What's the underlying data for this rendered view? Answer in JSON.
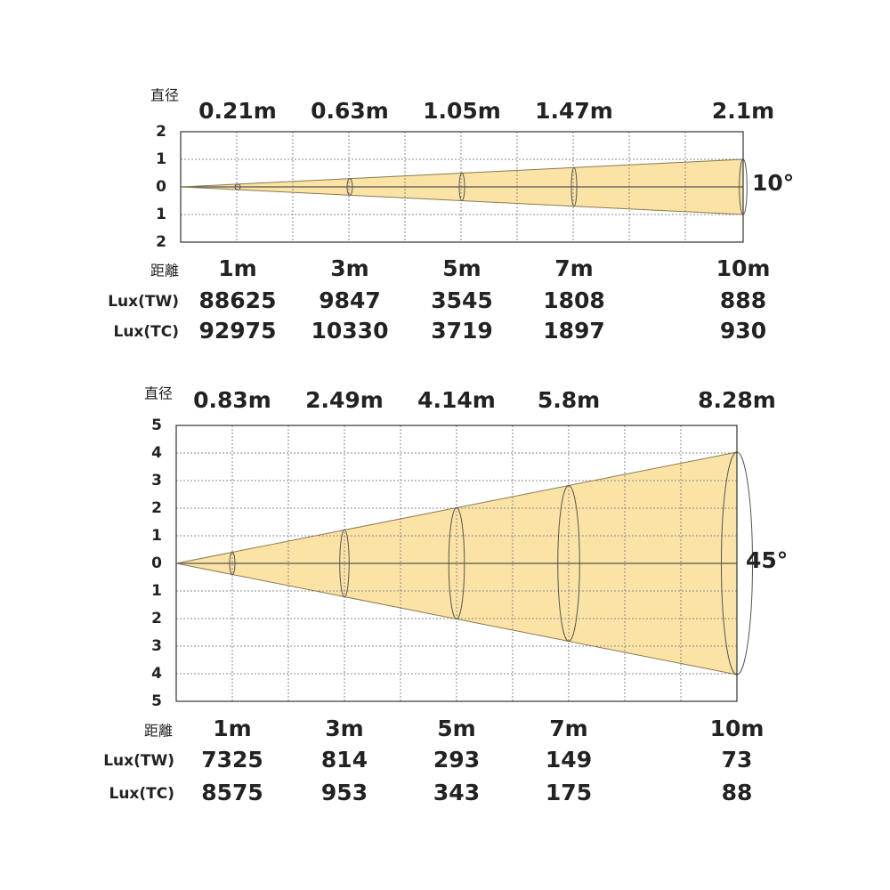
{
  "panels": [
    {
      "diameter_label": "直径",
      "diameters": [
        "0.21m",
        "0.63m",
        "1.05m",
        "1.47m",
        "2.1m"
      ],
      "axis_labels": [
        "2",
        "1",
        "0",
        "1",
        "2"
      ],
      "angle": "10°",
      "distance_label": "距離",
      "distances": [
        "1m",
        "3m",
        "5m",
        "7m",
        "10m"
      ],
      "lux_rows": [
        {
          "label": "Lux(TW)",
          "values": [
            88625,
            9847,
            3545,
            1808,
            888
          ]
        },
        {
          "label": "Lux(TC)",
          "values": [
            92975,
            10330,
            3719,
            1897,
            930
          ]
        }
      ]
    },
    {
      "diameter_label": "直径",
      "diameters": [
        "0.83m",
        "2.49m",
        "4.14m",
        "5.8m",
        "8.28m"
      ],
      "axis_labels": [
        "5",
        "4",
        "3",
        "2",
        "1",
        "0",
        "1",
        "2",
        "3",
        "4",
        "5"
      ],
      "angle": "45°",
      "distance_label": "距離",
      "distances": [
        "1m",
        "3m",
        "5m",
        "7m",
        "10m"
      ],
      "lux_rows": [
        {
          "label": "Lux(TW)",
          "values": [
            7325,
            814,
            293,
            149,
            73
          ]
        },
        {
          "label": "Lux(TC)",
          "values": [
            8575,
            953,
            343,
            175,
            88
          ]
        }
      ]
    }
  ]
}
